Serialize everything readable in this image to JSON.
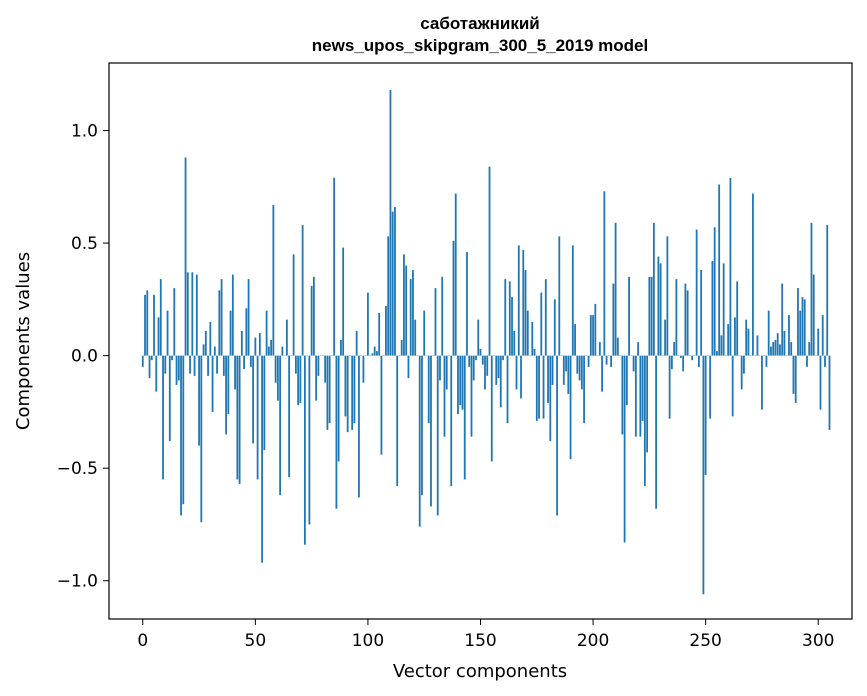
{
  "chart_data": {
    "type": "bar",
    "title_line1": "саботажникий",
    "title_line2": "news_upos_skipgram_300_5_2019 model",
    "xlabel": "Vector components",
    "ylabel": "Components values",
    "xlim": [
      -15,
      315
    ],
    "ylim": [
      -1.17,
      1.3
    ],
    "xticks": [
      0,
      50,
      100,
      150,
      200,
      250,
      300
    ],
    "xtick_labels": [
      "0",
      "50",
      "100",
      "150",
      "200",
      "250",
      "300"
    ],
    "yticks": [
      -1.0,
      -0.5,
      0.0,
      0.5,
      1.0
    ],
    "ytick_labels": [
      "−1.0",
      "−0.5",
      "0.0",
      "0.5",
      "1.0"
    ],
    "bar_color": "#1f77b4",
    "grid": false,
    "values": [
      -0.05,
      0.27,
      0.29,
      -0.1,
      -0.02,
      0.27,
      -0.16,
      0.17,
      0.34,
      -0.55,
      -0.08,
      0.2,
      -0.38,
      -0.02,
      0.3,
      -0.13,
      -0.11,
      -0.71,
      -0.66,
      0.88,
      0.37,
      -0.08,
      0.37,
      -0.09,
      0.36,
      -0.4,
      -0.74,
      0.05,
      0.11,
      -0.09,
      0.15,
      -0.25,
      0.04,
      -0.08,
      0.29,
      0.34,
      -0.09,
      -0.35,
      -0.26,
      0.2,
      0.36,
      -0.15,
      -0.55,
      -0.57,
      0.11,
      -0.06,
      0.21,
      0.34,
      -0.05,
      -0.39,
      0.08,
      -0.55,
      0.1,
      -0.92,
      -0.42,
      0.2,
      0.04,
      0.07,
      0.67,
      -0.12,
      -0.2,
      -0.62,
      0.04,
      0.0,
      0.16,
      -0.54,
      0.0,
      0.45,
      -0.08,
      -0.22,
      -0.21,
      0.58,
      -0.84,
      0.0,
      -0.75,
      0.31,
      0.35,
      -0.2,
      -0.09,
      0.0,
      0.0,
      -0.12,
      -0.33,
      -0.3,
      0.0,
      0.79,
      -0.68,
      -0.47,
      0.07,
      0.48,
      -0.27,
      -0.34,
      0.0,
      -0.33,
      -0.3,
      0.11,
      -0.63,
      0.0,
      -0.12,
      0.0,
      0.28,
      0.0,
      0.01,
      0.04,
      0.02,
      0.19,
      -0.44,
      0.0,
      0.22,
      0.53,
      1.18,
      0.64,
      0.66,
      -0.58,
      0.0,
      0.07,
      0.45,
      0.4,
      -0.1,
      0.34,
      0.38,
      0.16,
      0.0,
      -0.76,
      -0.62,
      0.2,
      0.0,
      -0.3,
      -0.67,
      0.0,
      0.3,
      -0.71,
      -0.11,
      0.35,
      -0.36,
      -0.15,
      0.0,
      -0.58,
      0.51,
      0.72,
      -0.26,
      -0.22,
      -0.24,
      -0.55,
      0.46,
      -0.05,
      -0.36,
      -0.11,
      -0.02,
      0.16,
      0.03,
      -0.04,
      -0.15,
      -0.09,
      0.84,
      -0.47,
      0.0,
      -0.13,
      -0.1,
      -0.23,
      -0.02,
      0.34,
      -0.3,
      0.33,
      0.26,
      0.11,
      -0.15,
      0.49,
      -0.19,
      0.47,
      0.38,
      0.2,
      0.0,
      0.15,
      0.03,
      -0.29,
      -0.28,
      0.28,
      -0.28,
      0.34,
      -0.21,
      -0.38,
      -0.13,
      0.25,
      -0.71,
      0.53,
      0.0,
      -0.13,
      -0.07,
      -0.17,
      -0.46,
      0.49,
      0.14,
      -0.08,
      -0.11,
      -0.15,
      -0.3,
      0.0,
      -0.05,
      0.18,
      0.18,
      0.23,
      0.0,
      0.06,
      -0.16,
      0.73,
      -0.04,
      0.0,
      -0.05,
      0.32,
      0.59,
      0.08,
      0.0,
      -0.35,
      -0.83,
      -0.22,
      0.35,
      0.0,
      -0.07,
      -0.36,
      0.06,
      -0.36,
      -0.29,
      -0.58,
      -0.43,
      0.35,
      0.35,
      0.59,
      -0.68,
      0.44,
      0.41,
      0.0,
      0.16,
      0.53,
      -0.28,
      -0.06,
      0.06,
      0.34,
      0.0,
      -0.01,
      -0.07,
      0.32,
      0.29,
      0.0,
      -0.02,
      0.0,
      0.56,
      -0.05,
      0.38,
      -1.06,
      -0.53,
      0.0,
      -0.28,
      0.42,
      0.57,
      0.02,
      0.76,
      0.09,
      0.41,
      0.0,
      0.14,
      0.79,
      -0.27,
      0.17,
      0.33,
      0.0,
      -0.15,
      -0.08,
      0.16,
      0.12,
      0.0,
      0.72,
      0.0,
      0.09,
      0.0,
      -0.24,
      0.0,
      -0.05,
      0.2,
      0.04,
      0.06,
      0.07,
      0.1,
      0.05,
      0.32,
      0.11,
      0.0,
      0.18,
      0.06,
      -0.17,
      -0.21,
      0.3,
      0.2,
      0.26,
      0.25,
      -0.05,
      0.06,
      0.59,
      0.36,
      0.0,
      0.12,
      -0.24,
      0.18,
      -0.05,
      0.58,
      -0.33
    ]
  }
}
